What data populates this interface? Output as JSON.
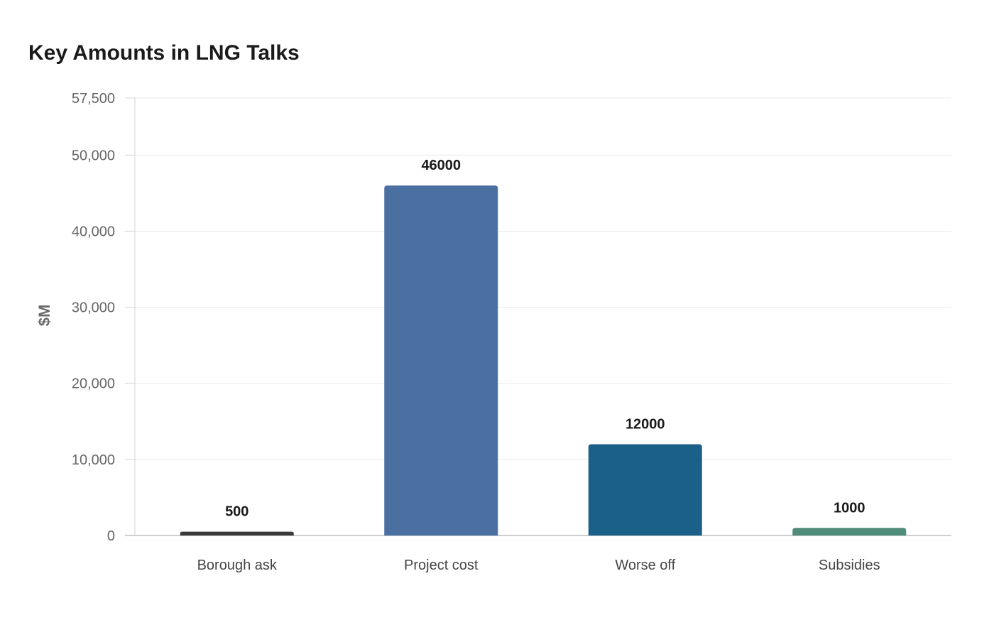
{
  "chart_data": {
    "type": "bar",
    "title": "Key Amounts in LNG Talks",
    "xlabel": "",
    "ylabel": "$M",
    "categories": [
      "Borough ask",
      "Project cost",
      "Worse off",
      "Subsidies"
    ],
    "values": [
      500,
      46000,
      12000,
      1000
    ],
    "value_labels": [
      "500",
      "46000",
      "12000",
      "1000"
    ],
    "colors": [
      "#3a3a3a",
      "#4a6fa1",
      "#1b6088",
      "#4f8c7a"
    ],
    "ylim": [
      0,
      57500
    ],
    "yticks": [
      0,
      10000,
      20000,
      30000,
      40000,
      50000,
      57500
    ],
    "ytick_labels": [
      "0",
      "10,000",
      "20,000",
      "30,000",
      "40,000",
      "50,000",
      "57,500"
    ],
    "grid": true,
    "legend": "none"
  }
}
